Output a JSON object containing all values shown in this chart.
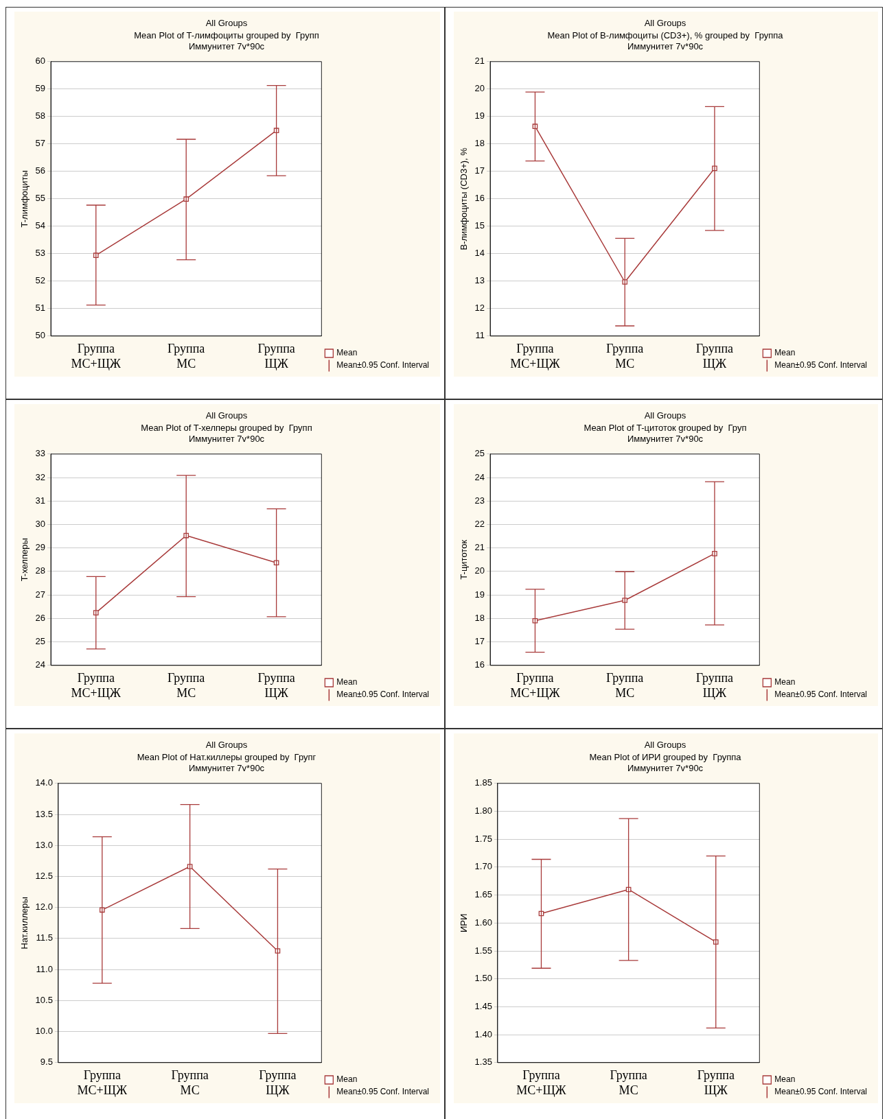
{
  "chart_data": [
    {
      "type": "line",
      "title": "All Groups",
      "subtitle": "Mean Plot of T-лимфоциты grouped by  Групп\nИммунитет 7v*90c",
      "ylabel": "T-лимфоциты",
      "categories": [
        "Группа МС+ЩЖ",
        "Группа МС",
        "Группа ЩЖ"
      ],
      "series": [
        {
          "name": "Mean",
          "color": "#a83a3a",
          "values": [
            52.94,
            54.99,
            57.49
          ],
          "errors": [
            [
              51.13,
              54.77
            ],
            [
              52.78,
              57.17
            ],
            [
              55.84,
              59.13
            ]
          ]
        }
      ],
      "ylim": [
        50,
        60
      ],
      "yticks": [
        50,
        51,
        52,
        53,
        54,
        55,
        56,
        57,
        58,
        59,
        60
      ],
      "grid": "y",
      "legend": "bottom right",
      "marker": "square",
      "annotations": [
        "Mean±0.95 Conf. Interval"
      ]
    },
    {
      "type": "line",
      "title": "All Groups",
      "subtitle": "Mean Plot of B-лимфоциты (CD3+), % grouped by  Группа\nИммунитет 7v*90c",
      "ylabel": "B-лимфоциты (CD3+), %",
      "categories": [
        "Группа МС+ЩЖ",
        "Группа МС",
        "Группа ЩЖ"
      ],
      "series": [
        {
          "name": "Mean",
          "color": "#a83a3a",
          "values": [
            18.64,
            12.97,
            17.11
          ],
          "errors": [
            [
              17.38,
              19.89
            ],
            [
              11.37,
              14.56
            ],
            [
              14.85,
              19.36
            ]
          ]
        }
      ],
      "ylim": [
        11,
        21
      ],
      "yticks": [
        11,
        12,
        13,
        14,
        15,
        16,
        17,
        18,
        19,
        20,
        21
      ],
      "grid": "y",
      "legend": "bottom right",
      "marker": "square",
      "annotations": [
        "Mean±0.95 Conf. Interval"
      ]
    },
    {
      "type": "line",
      "title": "All Groups",
      "subtitle": "Mean Plot of T-хелперы grouped by  Групп\nИммунитет 7v*90c",
      "ylabel": "T-хелперы",
      "categories": [
        "Группа МС+ЩЖ",
        "Группа МС",
        "Группа ЩЖ"
      ],
      "series": [
        {
          "name": "Mean",
          "color": "#a83a3a",
          "values": [
            26.24,
            29.53,
            28.37
          ],
          "errors": [
            [
              24.7,
              27.78
            ],
            [
              26.93,
              32.09
            ],
            [
              26.07,
              30.67
            ]
          ]
        }
      ],
      "ylim": [
        24,
        33
      ],
      "yticks": [
        24,
        25,
        26,
        27,
        28,
        29,
        30,
        31,
        32,
        33
      ],
      "grid": "y",
      "legend": "bottom right",
      "marker": "square",
      "annotations": [
        "Mean±0.95 Conf. Interval"
      ]
    },
    {
      "type": "line",
      "title": "All Groups",
      "subtitle": "Mean Plot of T-цитоток grouped by  Груп\nИммунитет 7v*90c",
      "ylabel": "T-цитоток",
      "categories": [
        "Группа МС+ЩЖ",
        "Группа МС",
        "Группа ЩЖ"
      ],
      "series": [
        {
          "name": "Mean",
          "color": "#a83a3a",
          "values": [
            17.9,
            18.77,
            20.76
          ],
          "errors": [
            [
              16.56,
              19.24
            ],
            [
              17.54,
              19.99
            ],
            [
              17.72,
              23.82
            ]
          ]
        }
      ],
      "ylim": [
        16,
        25
      ],
      "yticks": [
        16,
        17,
        18,
        19,
        20,
        21,
        22,
        23,
        24,
        25
      ],
      "grid": "y",
      "legend": "bottom right",
      "marker": "square",
      "annotations": [
        "Mean±0.95 Conf. Interval"
      ]
    },
    {
      "type": "line",
      "title": "All Groups",
      "subtitle": "Mean Plot of Нат.киллеры grouped by  Групг\nИммунитет 7v*90c",
      "ylabel": "Нат.киллеры",
      "categories": [
        "Группа МС+ЩЖ",
        "Группа МС",
        "Группа ЩЖ"
      ],
      "series": [
        {
          "name": "Mean",
          "color": "#a83a3a",
          "values": [
            11.96,
            12.66,
            11.3
          ],
          "errors": [
            [
              10.78,
              13.14
            ],
            [
              11.66,
              13.66
            ],
            [
              9.97,
              12.62
            ]
          ]
        }
      ],
      "ylim": [
        9.5,
        14
      ],
      "yticks": [
        {
          "value": 9.5,
          "label": "9.5"
        },
        {
          "value": 10,
          "label": "10.0"
        },
        {
          "value": 10.5,
          "label": "10.5"
        },
        {
          "value": 11,
          "label": "11.0"
        },
        {
          "value": 11.5,
          "label": "11.5"
        },
        {
          "value": 12,
          "label": "12.0"
        },
        {
          "value": 12.5,
          "label": "12.5"
        },
        {
          "value": 13,
          "label": "13.0"
        },
        {
          "value": 13.5,
          "label": "13.5"
        },
        {
          "value": 14,
          "label": "14.0"
        }
      ],
      "grid": "y",
      "legend": "bottom right",
      "marker": "square",
      "annotations": [
        "Mean±0.95 Conf. Interval"
      ]
    },
    {
      "type": "line",
      "title": "All Groups",
      "subtitle": "Mean Plot of ИРИ grouped by  Группа\nИммунитет 7v*90c",
      "ylabel": "ИРИ",
      "categories": [
        "Группа МС+ЩЖ",
        "Группа МС",
        "Группа ЩЖ"
      ],
      "series": [
        {
          "name": "Mean",
          "color": "#a83a3a",
          "values": [
            1.617,
            1.66,
            1.566
          ],
          "errors": [
            [
              1.519,
              1.714
            ],
            [
              1.533,
              1.787
            ],
            [
              1.412,
              1.72
            ]
          ]
        }
      ],
      "ylim": [
        1.35,
        1.85
      ],
      "yticks": [
        {
          "value": 1.35,
          "label": "1.35"
        },
        {
          "value": 1.4,
          "label": "1.40"
        },
        {
          "value": 1.45,
          "label": "1.45"
        },
        {
          "value": 1.5,
          "label": "1.50"
        },
        {
          "value": 1.55,
          "label": "1.55"
        },
        {
          "value": 1.6,
          "label": "1.60"
        },
        {
          "value": 1.65,
          "label": "1.65"
        },
        {
          "value": 1.7,
          "label": "1.70"
        },
        {
          "value": 1.75,
          "label": "1.75"
        },
        {
          "value": 1.8,
          "label": "1.80"
        },
        {
          "value": 1.85,
          "label": "1.85"
        }
      ],
      "grid": "y",
      "legend": "bottom right",
      "marker": "square",
      "annotations": [
        "Mean±0.95 Conf. Interval"
      ]
    }
  ]
}
